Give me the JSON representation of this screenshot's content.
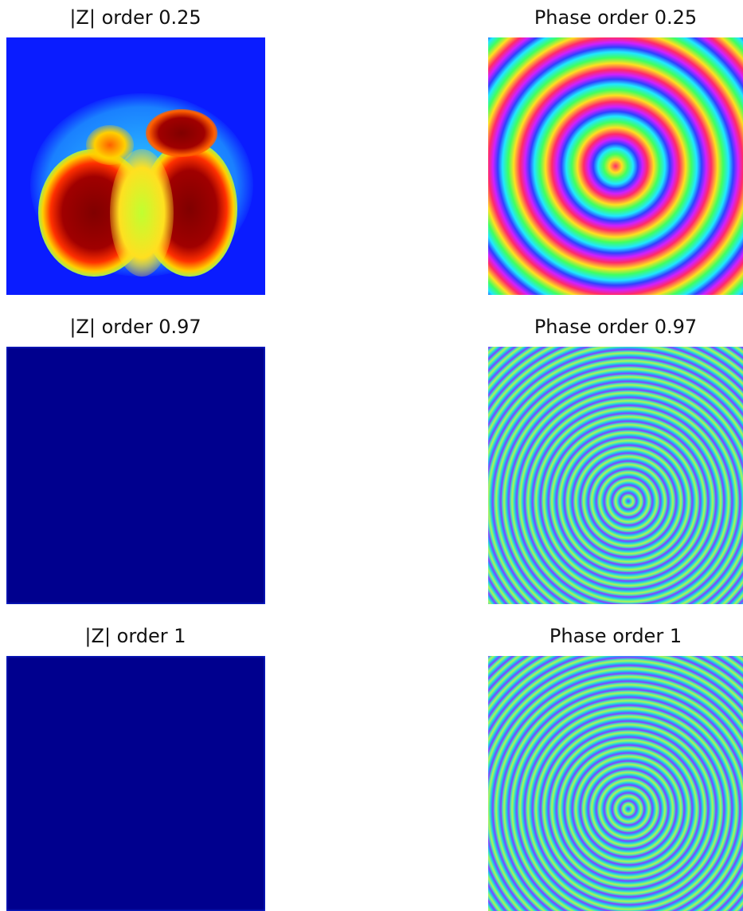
{
  "panels": [
    {
      "title": "|Z| order 0.25"
    },
    {
      "title": "Phase order 0.25"
    },
    {
      "title": "|Z| order 0.97"
    },
    {
      "title": "Phase order 0.97"
    },
    {
      "title": "|Z| order 1"
    },
    {
      "title": "Phase order 1"
    }
  ]
}
